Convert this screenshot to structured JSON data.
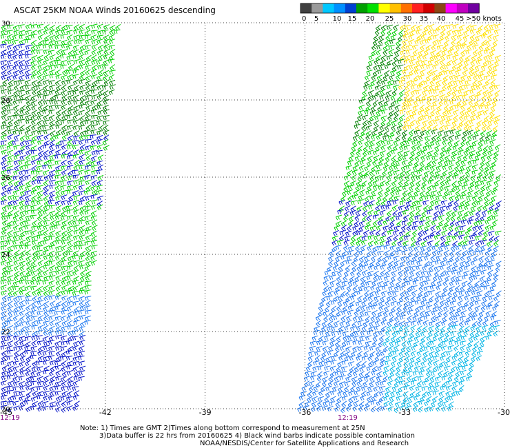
{
  "title": "ASCAT 25KM NOAA Winds 20160625 descending",
  "legend": {
    "colors": [
      "#404040",
      "#9a9a9a",
      "#00c8ff",
      "#0090ff",
      "#0040d0",
      "#00a000",
      "#00e000",
      "#ffff00",
      "#ffc000",
      "#ff7000",
      "#ff2020",
      "#d00000",
      "#8b4513",
      "#ff00ff",
      "#c000c0",
      "#7000a0"
    ],
    "tick_labels": [
      "0",
      "5",
      "10",
      "15",
      "20",
      "25",
      "30",
      "35",
      "40",
      "45",
      ">50 knots"
    ]
  },
  "axes": {
    "lat_labels": [
      "30",
      "28",
      "26",
      "24",
      "22",
      "20"
    ],
    "lon_labels": [
      "-45",
      "-42",
      "-39",
      "-36",
      "-33",
      "-30"
    ]
  },
  "swath_times": [
    "12:19",
    "12:19"
  ],
  "notes": [
    "Note: 1) Times are GMT 2)Times along bottom correspond to measurement at 25N",
    "3)Data buffer is 22 hrs from 20160625 4) Black wind barbs indicate possible contamination",
    "NOAA/NESDIS/Center for Satellite Applications and Research"
  ],
  "wind_colors": {
    "cyan": "#00b4e6",
    "blue_light": "#1e78f0",
    "blue_dark": "#0010c8",
    "green_dark": "#008000",
    "green_light": "#00d000",
    "yellow": "#ffe000"
  }
}
